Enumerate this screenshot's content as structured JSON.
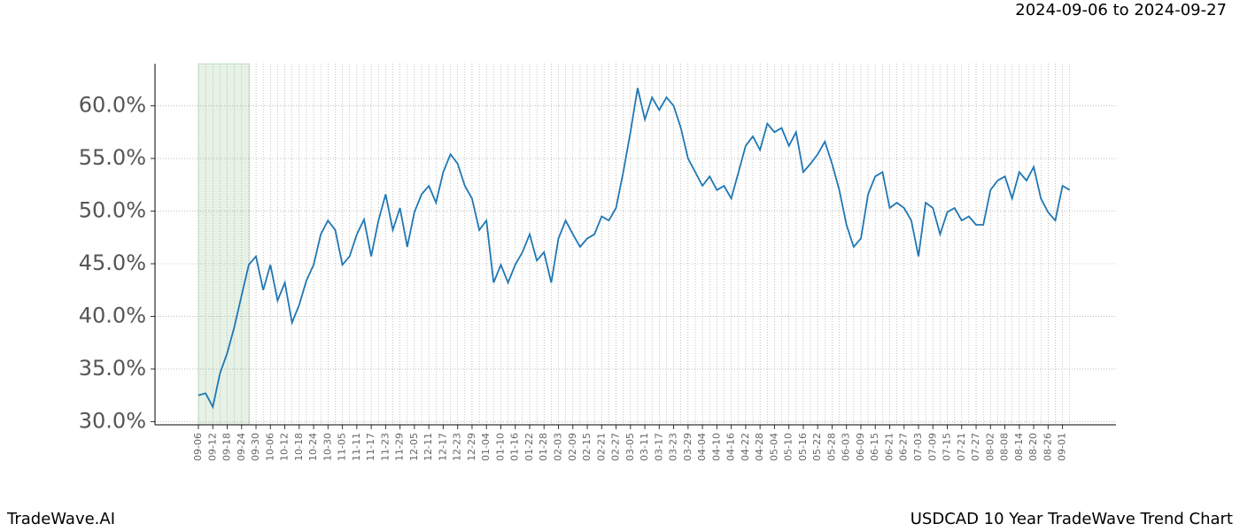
{
  "header": {
    "date_range": "2024-09-06 to 2024-09-27"
  },
  "footer": {
    "brand": "TradeWave.AI",
    "chart_name": "USDCAD 10 Year TradeWave Trend Chart"
  },
  "chart_data": {
    "type": "line",
    "color": "#1f77b4",
    "grid": true,
    "categories": [
      "09-06",
      null,
      "09-12",
      null,
      "09-18",
      null,
      "09-24",
      null,
      "09-30",
      null,
      "10-06",
      null,
      "10-12",
      null,
      "10-18",
      null,
      "10-24",
      null,
      "10-30",
      null,
      "11-05",
      null,
      "11-11",
      null,
      "11-17",
      null,
      "11-23",
      null,
      "11-29",
      null,
      "12-05",
      null,
      "12-11",
      null,
      "12-17",
      null,
      "12-23",
      null,
      "12-29",
      null,
      "01-04",
      null,
      "01-10",
      null,
      "01-16",
      null,
      "01-22",
      null,
      "01-28",
      null,
      "02-03",
      null,
      "02-09",
      null,
      "02-15",
      null,
      "02-21",
      null,
      "02-27",
      null,
      "03-05",
      null,
      "03-11",
      null,
      "03-17",
      null,
      "03-23",
      null,
      "03-29",
      null,
      "04-04",
      null,
      "04-10",
      null,
      "04-16",
      null,
      "04-22",
      null,
      "04-28",
      null,
      "05-04",
      null,
      "05-10",
      null,
      "05-16",
      null,
      "05-22",
      null,
      "05-28",
      null,
      "06-03",
      null,
      "06-09",
      null,
      "06-15",
      null,
      "06-21",
      null,
      "06-27",
      null,
      "07-03",
      null,
      "07-09",
      null,
      "07-15",
      null,
      "07-21",
      null,
      "07-27",
      null,
      "08-02",
      null,
      "08-08",
      null,
      "08-14",
      null,
      "08-20",
      null,
      "08-26",
      null,
      "09-01",
      null
    ],
    "values": [
      32.5,
      32.7,
      31.4,
      34.6,
      36.5,
      39.0,
      42.0,
      44.9,
      45.7,
      42.5,
      44.9,
      41.5,
      43.2,
      39.4,
      41.1,
      43.4,
      44.9,
      47.8,
      49.1,
      48.2,
      44.9,
      45.7,
      47.8,
      49.2,
      45.7,
      49.1,
      51.6,
      48.2,
      50.3,
      46.6,
      49.9,
      51.6,
      52.4,
      50.8,
      53.7,
      55.4,
      54.5,
      52.4,
      51.2,
      48.2,
      49.1,
      43.2,
      44.9,
      43.2,
      44.9,
      46.1,
      47.8,
      45.3,
      46.1,
      43.2,
      47.4,
      49.1,
      47.8,
      46.6,
      47.4,
      47.8,
      49.5,
      49.1,
      50.3,
      53.7,
      57.5,
      61.7,
      58.7,
      60.8,
      59.6,
      60.8,
      60.0,
      57.9,
      55.0,
      53.7,
      52.4,
      53.3,
      52.0,
      52.4,
      51.2,
      53.7,
      56.2,
      57.1,
      55.8,
      58.3,
      57.5,
      57.9,
      56.2,
      57.5,
      53.7,
      54.5,
      55.4,
      56.6,
      54.5,
      52.0,
      48.7,
      46.6,
      47.4,
      51.6,
      53.3,
      53.7,
      50.3,
      50.8,
      50.3,
      49.1,
      45.7,
      50.8,
      50.3,
      47.8,
      49.9,
      50.3,
      49.1,
      49.5,
      48.7,
      48.7,
      52.0,
      52.9,
      53.3,
      51.2,
      53.7,
      52.9,
      54.2,
      51.2,
      49.9,
      49.1,
      52.4,
      52.0
    ],
    "ylim": [
      29.7,
      64
    ],
    "yticks": [
      {
        "value": 30,
        "label": "30.0%"
      },
      {
        "value": 35,
        "label": "35.0%"
      },
      {
        "value": 40,
        "label": "40.0%"
      },
      {
        "value": 45,
        "label": "45.0%"
      },
      {
        "value": 50,
        "label": "50.0%"
      },
      {
        "value": 55,
        "label": "55.0%"
      },
      {
        "value": 60,
        "label": "60.0%"
      }
    ]
  }
}
